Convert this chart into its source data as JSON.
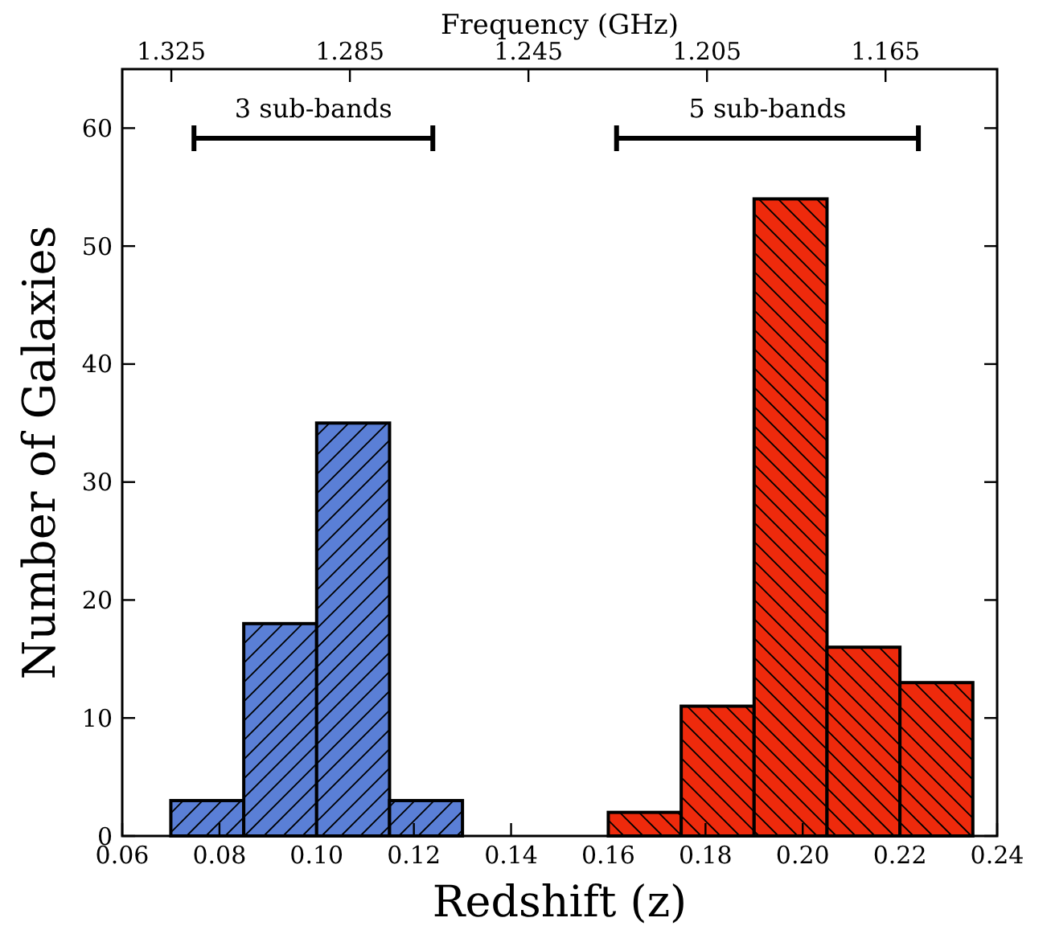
{
  "chart_data": {
    "type": "histogram",
    "xlabel": "Redshift (z)",
    "ylabel": "Number of Galaxies",
    "x2label": "Frequency (GHz)",
    "bins": [
      0.07,
      0.085,
      0.1,
      0.115,
      0.13,
      0.145,
      0.16,
      0.175,
      0.19,
      0.205,
      0.22,
      0.235
    ],
    "values": [
      3,
      18,
      35,
      3,
      0,
      0,
      2,
      11,
      54,
      16,
      13
    ],
    "colors": [
      "#5a7fd6",
      "#5a7fd6",
      "#5a7fd6",
      "#5a7fd6",
      "#5a7fd6",
      "#ee2a0c",
      "#ee2a0c",
      "#ee2a0c",
      "#ee2a0c",
      "#ee2a0c",
      "#ee2a0c"
    ],
    "xlim": [
      0.06,
      0.24
    ],
    "xticks": [
      {
        "value": 0.06,
        "label": "0.06"
      },
      {
        "value": 0.08,
        "label": "0.08"
      },
      {
        "value": 0.1,
        "label": "0.10"
      },
      {
        "value": 0.12,
        "label": "0.12"
      },
      {
        "value": 0.14,
        "label": "0.14"
      },
      {
        "value": 0.16,
        "label": "0.16"
      },
      {
        "value": 0.18,
        "label": "0.18"
      },
      {
        "value": 0.2,
        "label": "0.20"
      },
      {
        "value": 0.22,
        "label": "0.22"
      },
      {
        "value": 0.24,
        "label": "0.24"
      }
    ],
    "ylim": [
      0,
      65
    ],
    "yticks": [
      0,
      10,
      20,
      30,
      40,
      50,
      60
    ],
    "x2lim": [
      1.336,
      1.14
    ],
    "x2ticks": [
      1.325,
      1.285,
      1.245,
      1.205,
      1.165
    ],
    "annotations": [
      "3 sub-bands",
      "5 sub-bands"
    ]
  }
}
